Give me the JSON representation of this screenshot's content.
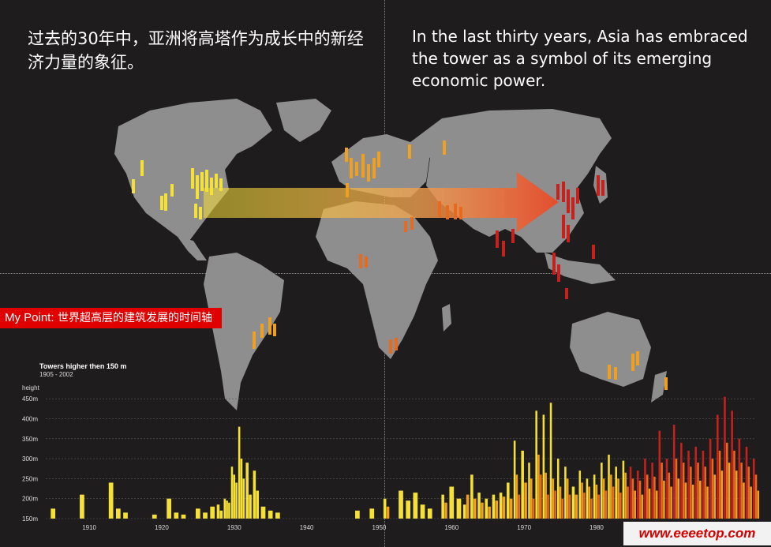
{
  "heading": {
    "chinese": "过去的30年中，亚洲将高塔作为成长中的新经济力量的象征。",
    "english": "In the last thirty years, Asia has embraced the tower as a symbol of its emerging economic power."
  },
  "banner": {
    "prefix": "My Point:",
    "text": "世界超高层的建筑发展的时间轴"
  },
  "watermark": "www.eeeetop.com",
  "colors": {
    "background": "#1e1c1c",
    "land": "#8e8e8e",
    "banner": "#e10000",
    "yellow": "#f5e035",
    "orange": "#f0a020",
    "dark_orange": "#e86a1e",
    "red": "#c8201c"
  },
  "chart_data": {
    "type": "bar",
    "title": "Towers higher then 150 m",
    "subtitle": "1905 - 2002",
    "ylabel": "height",
    "yticks": [
      "450m",
      "400m",
      "350m",
      "300m",
      "250m",
      "200m",
      "150m"
    ],
    "ytick_values": [
      450,
      400,
      350,
      300,
      250,
      200,
      150
    ],
    "xticks": [
      "1910",
      "1920",
      "1930",
      "1940",
      "1950",
      "1960",
      "1970",
      "1980"
    ],
    "xtick_values": [
      1910,
      1920,
      1930,
      1940,
      1950,
      1960,
      1970,
      1980
    ],
    "ylim": [
      150,
      480
    ],
    "xlim": [
      1904,
      2002
    ],
    "grid": true,
    "bars_per_year": [
      [
        1905,
        [
          175
        ]
      ],
      [
        1909,
        [
          210
        ]
      ],
      [
        1913,
        [
          240
        ]
      ],
      [
        1914,
        [
          175
        ]
      ],
      [
        1915,
        [
          165
        ]
      ],
      [
        1919,
        [
          160
        ]
      ],
      [
        1921,
        [
          200
        ]
      ],
      [
        1922,
        [
          165
        ]
      ],
      [
        1923,
        [
          160
        ]
      ],
      [
        1925,
        [
          175
        ]
      ],
      [
        1926,
        [
          165
        ]
      ],
      [
        1927,
        [
          180
        ]
      ],
      [
        1928,
        [
          185,
          170
        ]
      ],
      [
        1929,
        [
          200,
          195,
          190
        ]
      ],
      [
        1930,
        [
          280,
          260,
          240
        ]
      ],
      [
        1931,
        [
          380,
          300,
          250
        ]
      ],
      [
        1932,
        [
          290,
          210
        ]
      ],
      [
        1933,
        [
          270,
          220
        ]
      ],
      [
        1934,
        [
          180
        ]
      ],
      [
        1935,
        [
          170
        ]
      ],
      [
        1936,
        [
          165
        ]
      ],
      [
        1947,
        [
          170
        ]
      ],
      [
        1949,
        [
          175
        ]
      ],
      [
        1951,
        [
          200,
          180
        ]
      ],
      [
        1953,
        [
          220
        ]
      ],
      [
        1954,
        [
          195
        ]
      ],
      [
        1955,
        [
          215
        ]
      ],
      [
        1956,
        [
          185
        ]
      ],
      [
        1957,
        [
          175
        ]
      ],
      [
        1959,
        [
          210,
          190
        ]
      ],
      [
        1960,
        [
          230
        ]
      ],
      [
        1961,
        [
          200
        ]
      ],
      [
        1962,
        [
          185,
          210
        ]
      ],
      [
        1963,
        [
          260,
          200
        ]
      ],
      [
        1964,
        [
          215,
          190
        ]
      ],
      [
        1965,
        [
          200,
          180
        ]
      ],
      [
        1966,
        [
          210,
          195
        ]
      ],
      [
        1967,
        [
          215,
          205
        ]
      ],
      [
        1968,
        [
          240,
          200
        ]
      ],
      [
        1969,
        [
          345,
          260,
          210
        ]
      ],
      [
        1970,
        [
          320,
          240
        ]
      ],
      [
        1971,
        [
          290,
          250,
          200
        ]
      ],
      [
        1972,
        [
          420,
          310,
          260
        ]
      ],
      [
        1973,
        [
          410,
          265,
          210
        ]
      ],
      [
        1974,
        [
          440,
          250,
          220
        ]
      ],
      [
        1975,
        [
          300,
          230,
          200
        ]
      ],
      [
        1976,
        [
          280,
          250,
          210
        ]
      ],
      [
        1977,
        [
          230,
          210
        ]
      ],
      [
        1978,
        [
          270,
          240,
          215
        ]
      ],
      [
        1979,
        [
          250,
          230,
          200
        ]
      ],
      [
        1980,
        [
          260,
          235,
          210
        ]
      ],
      [
        1981,
        [
          290,
          250,
          220
        ]
      ],
      [
        1982,
        [
          310,
          260,
          230
        ]
      ],
      [
        1983,
        [
          280,
          250,
          215
        ]
      ],
      [
        1984,
        [
          295,
          265,
          230
        ]
      ],
      [
        1985,
        [
          280,
          250,
          220
        ]
      ],
      [
        1986,
        [
          270,
          245,
          210
        ]
      ],
      [
        1987,
        [
          300,
          260,
          225
        ]
      ],
      [
        1988,
        [
          290,
          255,
          220
        ]
      ],
      [
        1989,
        [
          370,
          290,
          245
        ]
      ],
      [
        1990,
        [
          300,
          265,
          230
        ]
      ],
      [
        1991,
        [
          385,
          300,
          250
        ]
      ],
      [
        1992,
        [
          340,
          290,
          240
        ]
      ],
      [
        1993,
        [
          320,
          280,
          235
        ]
      ],
      [
        1994,
        [
          330,
          290,
          245
        ]
      ],
      [
        1995,
        [
          320,
          280,
          230
        ]
      ],
      [
        1996,
        [
          350,
          300,
          260
        ]
      ],
      [
        1997,
        [
          410,
          320,
          270
        ]
      ],
      [
        1998,
        [
          455,
          340,
          290
        ]
      ],
      [
        1999,
        [
          420,
          320,
          270
        ]
      ],
      [
        2000,
        [
          350,
          290,
          240
        ]
      ],
      [
        2001,
        [
          330,
          280,
          230
        ]
      ],
      [
        2002,
        [
          300,
          260,
          220
        ]
      ]
    ]
  }
}
